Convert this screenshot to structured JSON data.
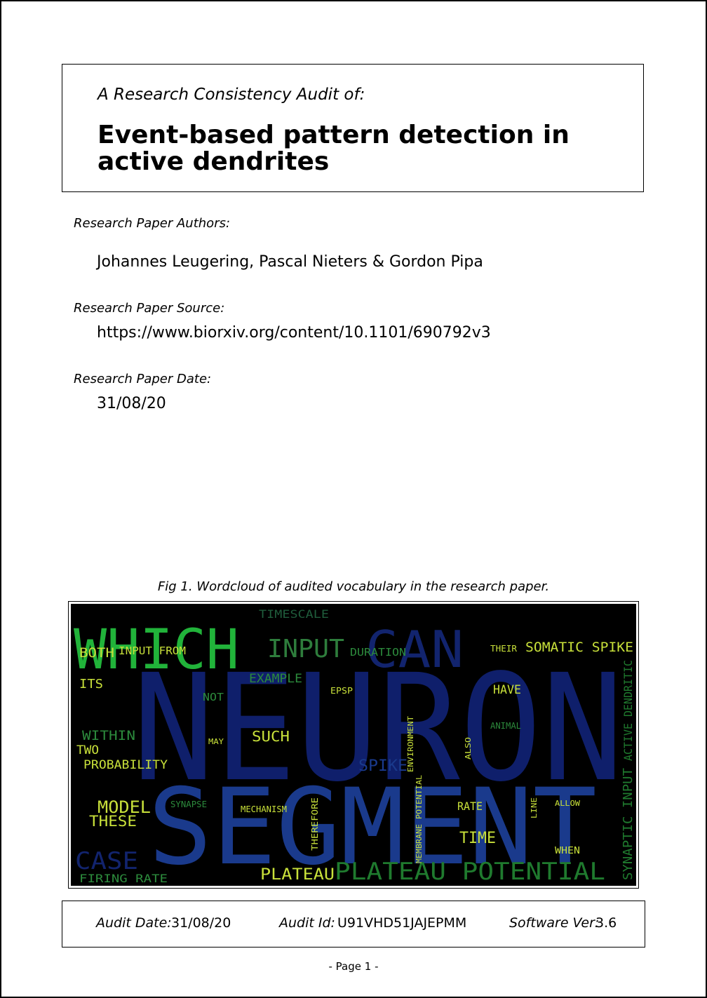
{
  "header": {
    "subtitle": "A Research Consistency Audit of:",
    "title": "Event-based pattern detection in active dendrites"
  },
  "authors": {
    "label": "Research Paper Authors:",
    "value": "Johannes Leugering, Pascal Nieters & Gordon Pipa"
  },
  "source": {
    "label": "Research Paper Source:",
    "value": "https://www.biorxiv.org/content/10.1101/690792v3"
  },
  "date": {
    "label": "Research Paper Date:",
    "value": "31/08/20"
  },
  "figure": {
    "caption": "Fig 1. Wordcloud of audited vocabulary in the research paper.",
    "words": [
      {
        "text": "NEURON",
        "color": "#0f1f6b"
      },
      {
        "text": "SEGMENT",
        "color": "#1a3a8c"
      },
      {
        "text": "WHICH",
        "color": "#21b33a"
      },
      {
        "text": "CAN",
        "color": "#12246e"
      },
      {
        "text": "INPUT",
        "color": "#2e7d3c"
      },
      {
        "text": "TIMESCALE",
        "color": "#1f5c3b"
      },
      {
        "text": "PLATEAU POTENTIAL",
        "color": "#1f7a2e"
      },
      {
        "text": "PLATEAU",
        "color": "#c8e03a"
      },
      {
        "text": "SOMATIC SPIKE",
        "color": "#c8e03a"
      },
      {
        "text": "BOTH",
        "color": "#c8e03a"
      },
      {
        "text": "INPUT FROM",
        "color": "#c8e03a"
      },
      {
        "text": "DURATION",
        "color": "#2c8a3c"
      },
      {
        "text": "THEIR",
        "color": "#c8e03a"
      },
      {
        "text": "EXAMPLE",
        "color": "#2c8a3c"
      },
      {
        "text": "ITS",
        "color": "#c8e03a"
      },
      {
        "text": "NOT",
        "color": "#2c8a3c"
      },
      {
        "text": "EPSP",
        "color": "#c8e03a"
      },
      {
        "text": "HAVE",
        "color": "#c8e03a"
      },
      {
        "text": "ACTIVE DENDRITIC",
        "color": "#1f7a2e"
      },
      {
        "text": "WITHIN",
        "color": "#2c8a3c"
      },
      {
        "text": "SUCH",
        "color": "#c8e03a"
      },
      {
        "text": "TWO",
        "color": "#c8e03a"
      },
      {
        "text": "PROBABILITY",
        "color": "#c8e03a"
      },
      {
        "text": "ANIMAL",
        "color": "#2c8a3c"
      },
      {
        "text": "MODEL",
        "color": "#c8e03a"
      },
      {
        "text": "THESE",
        "color": "#c8e03a"
      },
      {
        "text": "MECHANISM",
        "color": "#c8e03a"
      },
      {
        "text": "SYNAPSE",
        "color": "#2c8a3c"
      },
      {
        "text": "RATE",
        "color": "#c8e03a"
      },
      {
        "text": "TIME",
        "color": "#c8e03a"
      },
      {
        "text": "SYNAPTIC INPUT",
        "color": "#1f7a2e"
      },
      {
        "text": "FIRING RATE",
        "color": "#2c8a3c"
      },
      {
        "text": "WHEN",
        "color": "#c8e03a"
      },
      {
        "text": "ALSO",
        "color": "#c8e03a"
      },
      {
        "text": "ENVIRONMENT",
        "color": "#c8e03a"
      },
      {
        "text": "THEREFORE",
        "color": "#c8e03a"
      },
      {
        "text": "MEMBRANE POTENTIAL",
        "color": "#c8e03a"
      },
      {
        "text": "LINE",
        "color": "#c8e03a"
      },
      {
        "text": "ALLOW",
        "color": "#c8e03a"
      },
      {
        "text": "MAY",
        "color": "#c8e03a"
      },
      {
        "text": "SPIKE",
        "color": "#1a3a8c"
      },
      {
        "text": "CASE",
        "color": "#12246e"
      }
    ]
  },
  "footer": {
    "audit_date_label": "Audit Date:",
    "audit_date": "31/08/20",
    "audit_id_label": "Audit Id:",
    "audit_id": "U91VHD51JAJEPMM",
    "software_label": "Software Ver:",
    "software_ver": "3.6"
  },
  "page_number": "-  Page 1  -"
}
